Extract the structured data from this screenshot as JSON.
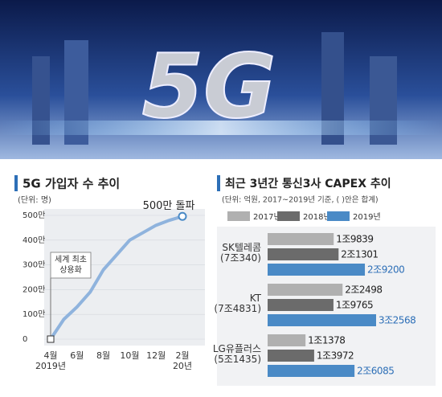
{
  "banner_text": "5G",
  "chart_data": [
    {
      "type": "line",
      "title": "5G 가입자 수 추이",
      "subtitle": "(단위: 명)",
      "categories": [
        "4월\n2019년",
        null,
        "6월",
        null,
        "8월",
        null,
        "10월",
        null,
        "12월",
        null,
        "2월\n20년"
      ],
      "values": [
        0,
        80,
        130,
        190,
        280,
        340,
        400,
        430,
        460,
        480,
        496
      ],
      "color": "#8fb3dd",
      "ylim": [
        0,
        500
      ],
      "yticks": [
        0,
        {
          "value": 100,
          "label": "100만"
        },
        {
          "value": 200,
          "label": "200만"
        },
        {
          "value": 300,
          "label": "300만"
        },
        {
          "value": 400,
          "label": "400만"
        },
        {
          "value": 500,
          "label": "500만"
        }
      ],
      "annotations": [
        "세계 최초\n상용화",
        "500만 돌파"
      ]
    },
    {
      "type": "hbar",
      "title": "최근 3년간 통신3사 CAPEX 추이",
      "subtitle": "(단위: 억원, 2017~2019년 기준, (  )안은 합계)",
      "categories": [
        "SK텔레콤\n(7조340)",
        "KT\n(7조4831)",
        "LG유플러스\n(5조1435)"
      ],
      "series": [
        {
          "name": "2017년",
          "color": "#b0b0b0",
          "values": [
            19839,
            22498,
            11378
          ],
          "value_labels": [
            "1조9839",
            "2조2498",
            "1조1378"
          ]
        },
        {
          "name": "2018년",
          "color": "#6b6b6b",
          "values": [
            21301,
            19765,
            13972
          ],
          "value_labels": [
            "2조1301",
            "1조9765",
            "1조3972"
          ]
        },
        {
          "name": "2019년",
          "color": "#4a8ac6",
          "values": [
            29200,
            32568,
            26085
          ],
          "value_labels": [
            "2조9200",
            "3조2568",
            "2조6085"
          ]
        }
      ]
    }
  ]
}
